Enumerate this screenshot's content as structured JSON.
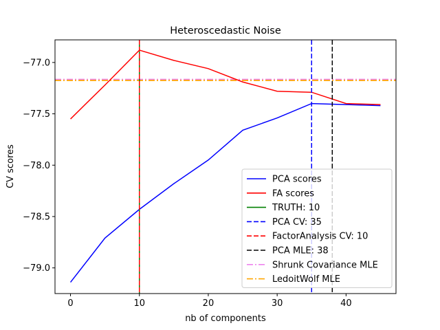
{
  "chart_data": {
    "type": "line",
    "title": "Heteroscedastic Noise",
    "xlabel": "nb of components",
    "ylabel": "CV scores",
    "xlim": [
      -2.25,
      47.25
    ],
    "ylim": [
      -79.25,
      -76.78
    ],
    "xticks": [
      0,
      10,
      20,
      30,
      40
    ],
    "xtick_labels": [
      "0",
      "10",
      "20",
      "30",
      "40"
    ],
    "yticks": [
      -79.0,
      -78.5,
      -78.0,
      -77.5,
      -77.0
    ],
    "ytick_labels": [
      "−79.0",
      "−78.5",
      "−78.0",
      "−77.5",
      "−77.0"
    ],
    "grid": false,
    "legend_position": "lower-right",
    "series": [
      {
        "name": "PCA scores",
        "color": "#0000ff",
        "style": "solid",
        "x": [
          0,
          5,
          10,
          15,
          20,
          25,
          30,
          35,
          40,
          45
        ],
        "y": [
          -79.14,
          -78.71,
          -78.43,
          -78.18,
          -77.95,
          -77.66,
          -77.54,
          -77.4,
          -77.41,
          -77.42
        ]
      },
      {
        "name": "FA scores",
        "color": "#ff0000",
        "style": "solid",
        "x": [
          0,
          5,
          10,
          15,
          20,
          25,
          30,
          35,
          40,
          45
        ],
        "y": [
          -77.55,
          -77.22,
          -76.88,
          -76.98,
          -77.06,
          -77.19,
          -77.28,
          -77.29,
          -77.4,
          -77.41
        ]
      }
    ],
    "vlines": [
      {
        "name": "TRUTH: 10",
        "x": 10,
        "color": "#008000",
        "style": "solid"
      },
      {
        "name": "PCA CV: 35",
        "x": 35,
        "color": "#0000ff",
        "style": "dashed"
      },
      {
        "name": "FactorAnalysis CV: 10",
        "x": 10,
        "color": "#ff0000",
        "style": "dashed"
      },
      {
        "name": "PCA MLE: 38",
        "x": 38,
        "color": "#000000",
        "style": "dashed"
      }
    ],
    "hlines": [
      {
        "name": "Shrunk Covariance MLE",
        "y": -77.165,
        "color": "#ee82ee",
        "style": "dashdot"
      },
      {
        "name": "LedoitWolf MLE",
        "y": -77.175,
        "color": "#ffa500",
        "style": "dashdot"
      }
    ],
    "legend": [
      {
        "label": "PCA scores",
        "color": "#0000ff",
        "style": "solid"
      },
      {
        "label": "FA scores",
        "color": "#ff0000",
        "style": "solid"
      },
      {
        "label": "TRUTH: 10",
        "color": "#008000",
        "style": "solid"
      },
      {
        "label": "PCA CV: 35",
        "color": "#0000ff",
        "style": "dashed"
      },
      {
        "label": "FactorAnalysis CV: 10",
        "color": "#ff0000",
        "style": "dashed"
      },
      {
        "label": "PCA MLE: 38",
        "color": "#000000",
        "style": "dashed"
      },
      {
        "label": "Shrunk Covariance MLE",
        "color": "#ee82ee",
        "style": "dashdot"
      },
      {
        "label": "LedoitWolf MLE",
        "color": "#ffa500",
        "style": "dashdot"
      }
    ]
  }
}
